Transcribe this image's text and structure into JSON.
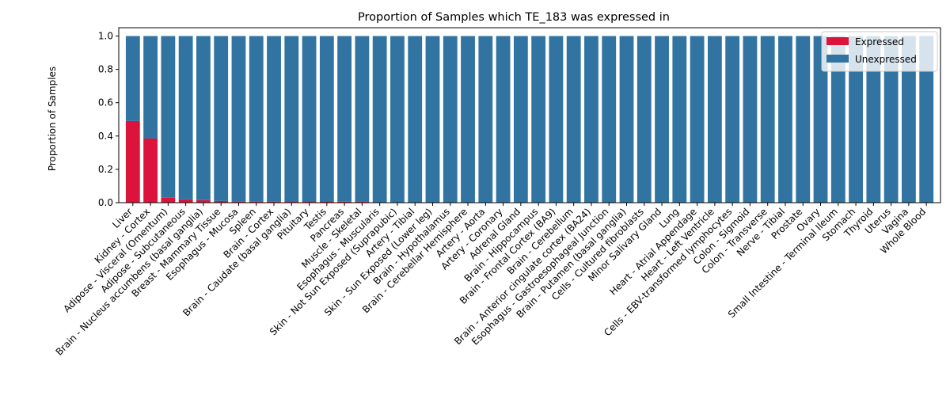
{
  "chart_data": {
    "type": "bar",
    "stacked": true,
    "title": "Proportion of Samples which TE_183 was expressed in",
    "xlabel": "",
    "ylabel": "Proportion of Samples",
    "ylim": [
      0,
      1.05
    ],
    "yticks": [
      "0.0",
      "0.2",
      "0.4",
      "0.6",
      "0.8",
      "1.0"
    ],
    "legend_position": "top-right",
    "grid": false,
    "categories": [
      "Liver",
      "Kidney - Cortex",
      "Adipose - Visceral (Omentum)",
      "Adipose - Subcutaneous",
      "Brain - Nucleus accumbens (basal ganglia)",
      "Breast - Mammary Tissue",
      "Esophagus - Mucosa",
      "Spleen",
      "Brain - Cortex",
      "Brain - Caudate (basal ganglia)",
      "Pituitary",
      "Testis",
      "Pancreas",
      "Muscle - Skeletal",
      "Esophagus - Muscularis",
      "Skin - Not Sun Exposed (Suprapubic)",
      "Artery - Tibial",
      "Skin - Sun Exposed (Lower leg)",
      "Brain - Hypothalamus",
      "Brain - Cerebellar Hemisphere",
      "Artery - Aorta",
      "Artery - Coronary",
      "Adrenal Gland",
      "Brain - Hippocampus",
      "Brain - Frontal Cortex (BA9)",
      "Brain - Cerebellum",
      "Brain - Anterior cingulate cortex (BA24)",
      "Esophagus - Gastroesophageal Junction",
      "Brain - Putamen (basal ganglia)",
      "Cells - Cultured fibroblasts",
      "Minor Salivary Gland",
      "Lung",
      "Heart - Atrial Appendage",
      "Heart - Left Ventricle",
      "Cells - EBV-transformed lymphocytes",
      "Colon - Sigmoid",
      "Colon - Transverse",
      "Nerve - Tibial",
      "Prostate",
      "Ovary",
      "Small Intestine - Terminal Ileum",
      "Stomach",
      "Thyroid",
      "Uterus",
      "Vagina",
      "Whole Blood"
    ],
    "series": [
      {
        "name": "Expressed",
        "color": "#dc143c",
        "values": [
          0.49,
          0.385,
          0.03,
          0.02,
          0.015,
          0.01,
          0.008,
          0.008,
          0.008,
          0.007,
          0.007,
          0.007,
          0.006,
          0.005,
          0,
          0,
          0,
          0,
          0,
          0,
          0,
          0,
          0,
          0,
          0,
          0,
          0,
          0,
          0,
          0,
          0,
          0,
          0,
          0,
          0,
          0,
          0,
          0,
          0,
          0,
          0,
          0,
          0,
          0,
          0,
          0
        ]
      },
      {
        "name": "Unexpressed",
        "color": "#3274a1",
        "values": [
          0.51,
          0.615,
          0.97,
          0.98,
          0.985,
          0.99,
          0.992,
          0.992,
          0.992,
          0.993,
          0.993,
          0.993,
          0.994,
          0.995,
          1,
          1,
          1,
          1,
          1,
          1,
          1,
          1,
          1,
          1,
          1,
          1,
          1,
          1,
          1,
          1,
          1,
          1,
          1,
          1,
          1,
          1,
          1,
          1,
          1,
          1,
          1,
          1,
          1,
          1,
          1,
          1
        ]
      }
    ]
  }
}
